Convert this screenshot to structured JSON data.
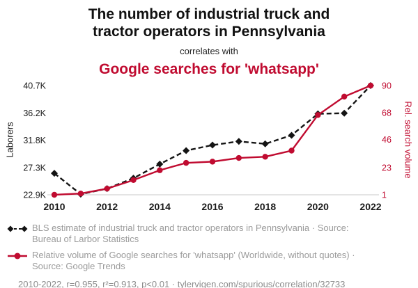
{
  "header": {
    "title_line1": "The number of industrial truck and",
    "title_line2": "tractor operators in Pennsylvania",
    "connector": "correlates with",
    "subtitle": "Google searches for 'whatsapp'"
  },
  "colors": {
    "series_black": "#141414",
    "series_red": "#c00b30",
    "legend_text": "#9b9b9b",
    "footer_text": "#8c8c8c",
    "axis_line": "#c8c8c8"
  },
  "chart_data": {
    "type": "line",
    "x": [
      2010,
      2011,
      2012,
      2013,
      2014,
      2015,
      2016,
      2017,
      2018,
      2019,
      2020,
      2021,
      2022
    ],
    "x_ticks": [
      2010,
      2012,
      2014,
      2016,
      2018,
      2020,
      2022
    ],
    "left_axis": {
      "label": "Laborers",
      "ticks": [
        "22.9K",
        "27.3K",
        "31.8K",
        "36.2K",
        "40.7K"
      ],
      "tick_values": [
        22900,
        27300,
        31800,
        36200,
        40700
      ],
      "range": [
        22900,
        40700
      ]
    },
    "right_axis": {
      "label": "Rel. search volume",
      "ticks": [
        "1",
        "23",
        "46",
        "68",
        "90"
      ],
      "tick_values": [
        1,
        23,
        46,
        68,
        90
      ],
      "range": [
        1,
        90
      ]
    },
    "series": [
      {
        "name": "BLS estimate of industrial truck and tractor operators in Pennsylvania",
        "axis": "left",
        "style": "dashed",
        "marker": "diamond",
        "color": "#141414",
        "values": [
          26400,
          23000,
          23900,
          25600,
          27900,
          30100,
          31000,
          31600,
          31200,
          32600,
          36100,
          36200,
          40700
        ]
      },
      {
        "name": "Relative volume of Google searches for 'whatsapp'",
        "axis": "right",
        "style": "solid",
        "marker": "circle",
        "color": "#c00b30",
        "values": [
          1,
          2,
          6,
          13,
          21,
          27,
          28,
          31,
          32,
          37,
          66,
          81,
          90
        ]
      }
    ],
    "grid": false,
    "legend_position": "below"
  },
  "legend": {
    "items": [
      {
        "text": "BLS estimate of industrial truck and tractor operators in Pennsylvania · Source: Bureau of Larbor Statistics"
      },
      {
        "text": "Relative volume of Google searches for 'whatsapp' (Worldwide, without quotes) · Source: Google Trends"
      }
    ]
  },
  "footer": {
    "text": "2010-2022, r=0.955, r²=0.913, p<0.01 · tylervigen.com/spurious/correlation/32733"
  }
}
